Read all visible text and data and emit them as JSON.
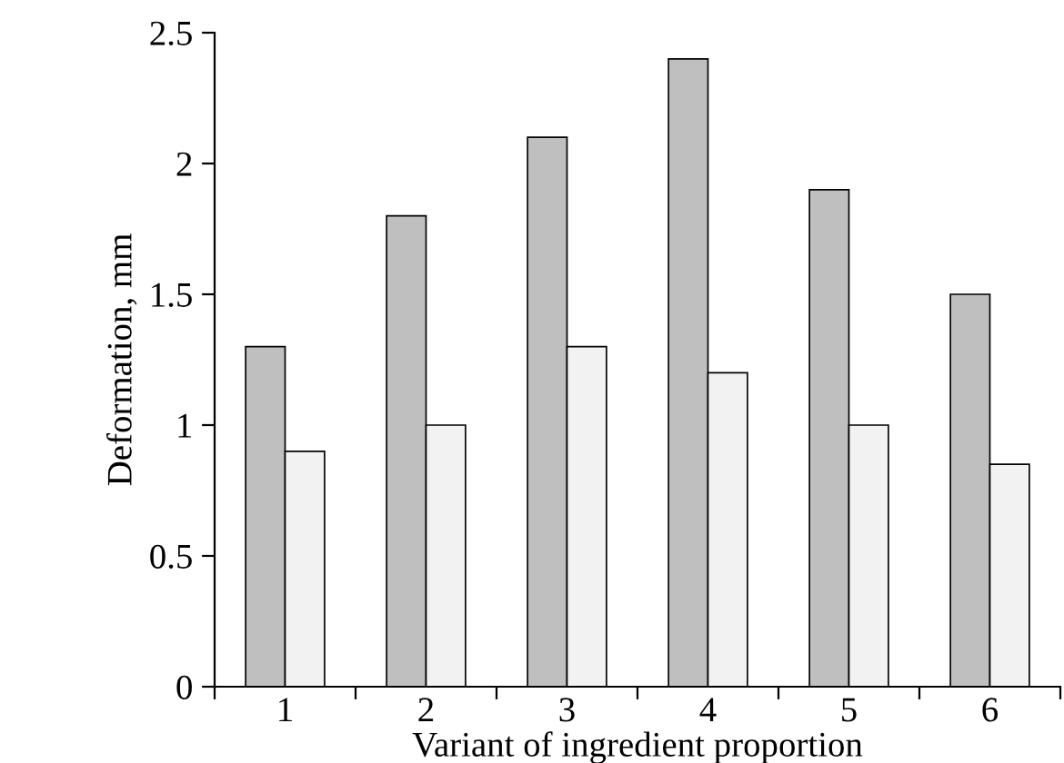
{
  "chart_data": {
    "type": "bar",
    "xlabel": "Variant of ingredient proportion",
    "ylabel": "Deformation, mm",
    "categories": [
      "1",
      "2",
      "3",
      "4",
      "5",
      "6"
    ],
    "series": [
      {
        "color": "#bfbfbf",
        "values": [
          1.3,
          1.8,
          2.1,
          2.4,
          1.9,
          1.5
        ]
      },
      {
        "color": "#f2f2f2",
        "values": [
          0.9,
          1.0,
          1.3,
          1.2,
          1.0,
          0.85
        ]
      }
    ],
    "ylim": [
      0,
      2.5
    ],
    "yticks": [
      0,
      0.5,
      1,
      1.5,
      2,
      2.5
    ],
    "grid": false,
    "legend": false
  }
}
